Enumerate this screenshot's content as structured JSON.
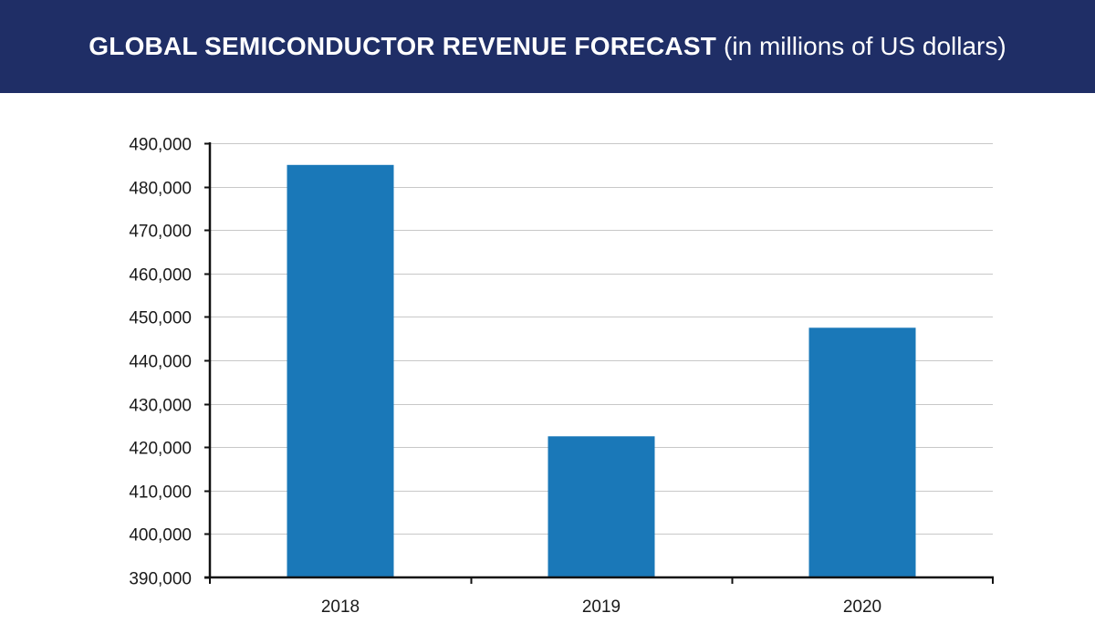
{
  "header": {
    "title_bold": "GLOBAL SEMICONDUCTOR REVENUE FORECAST",
    "title_sub": "(in millions of US dollars)"
  },
  "colors": {
    "header_bg": "#1f2e66",
    "bar": "#1a78b8",
    "grid": "#c8c8c8",
    "axis": "#111111"
  },
  "chart_data": {
    "type": "bar",
    "title": "GLOBAL SEMICONDUCTOR REVENUE FORECAST (in millions of US dollars)",
    "categories": [
      "2018",
      "2019",
      "2020"
    ],
    "values": [
      485000,
      422500,
      447500
    ],
    "ylim": [
      390000,
      490000
    ],
    "yticks": [
      390000,
      400000,
      410000,
      420000,
      430000,
      440000,
      450000,
      460000,
      470000,
      480000,
      490000
    ],
    "ytick_labels": [
      "390,000",
      "400,000",
      "410,000",
      "420,000",
      "430,000",
      "440,000",
      "450,000",
      "460,000",
      "470,000",
      "480,000",
      "490,000"
    ],
    "xlabel": "",
    "ylabel": "",
    "grid": true,
    "legend": "none"
  }
}
